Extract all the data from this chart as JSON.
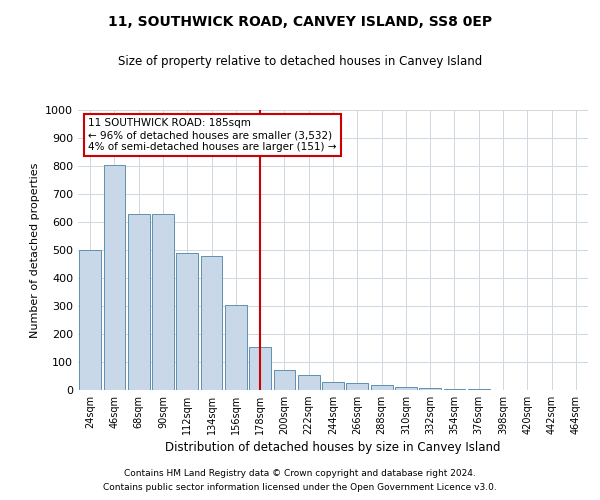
{
  "title1": "11, SOUTHWICK ROAD, CANVEY ISLAND, SS8 0EP",
  "title2": "Size of property relative to detached houses in Canvey Island",
  "xlabel": "Distribution of detached houses by size in Canvey Island",
  "ylabel": "Number of detached properties",
  "footer1": "Contains HM Land Registry data © Crown copyright and database right 2024.",
  "footer2": "Contains public sector information licensed under the Open Government Licence v3.0.",
  "categories": [
    "24sqm",
    "46sqm",
    "68sqm",
    "90sqm",
    "112sqm",
    "134sqm",
    "156sqm",
    "178sqm",
    "200sqm",
    "222sqm",
    "244sqm",
    "266sqm",
    "288sqm",
    "310sqm",
    "332sqm",
    "354sqm",
    "376sqm",
    "398sqm",
    "420sqm",
    "442sqm",
    "464sqm"
  ],
  "values": [
    500,
    805,
    630,
    630,
    490,
    480,
    305,
    155,
    70,
    55,
    30,
    25,
    18,
    12,
    8,
    4,
    2,
    1,
    1,
    0,
    0
  ],
  "bar_color": "#c8d8e8",
  "bar_edge_color": "#6090b0",
  "marker_index": 7,
  "marker_line_color": "#cc0000",
  "ylim": [
    0,
    1000
  ],
  "yticks": [
    0,
    100,
    200,
    300,
    400,
    500,
    600,
    700,
    800,
    900,
    1000
  ],
  "annotation_text": "11 SOUTHWICK ROAD: 185sqm\n← 96% of detached houses are smaller (3,532)\n4% of semi-detached houses are larger (151) →",
  "annotation_box_color": "#ffffff",
  "annotation_box_edge_color": "#cc0000",
  "background_color": "#ffffff",
  "grid_color": "#d0d8e0"
}
